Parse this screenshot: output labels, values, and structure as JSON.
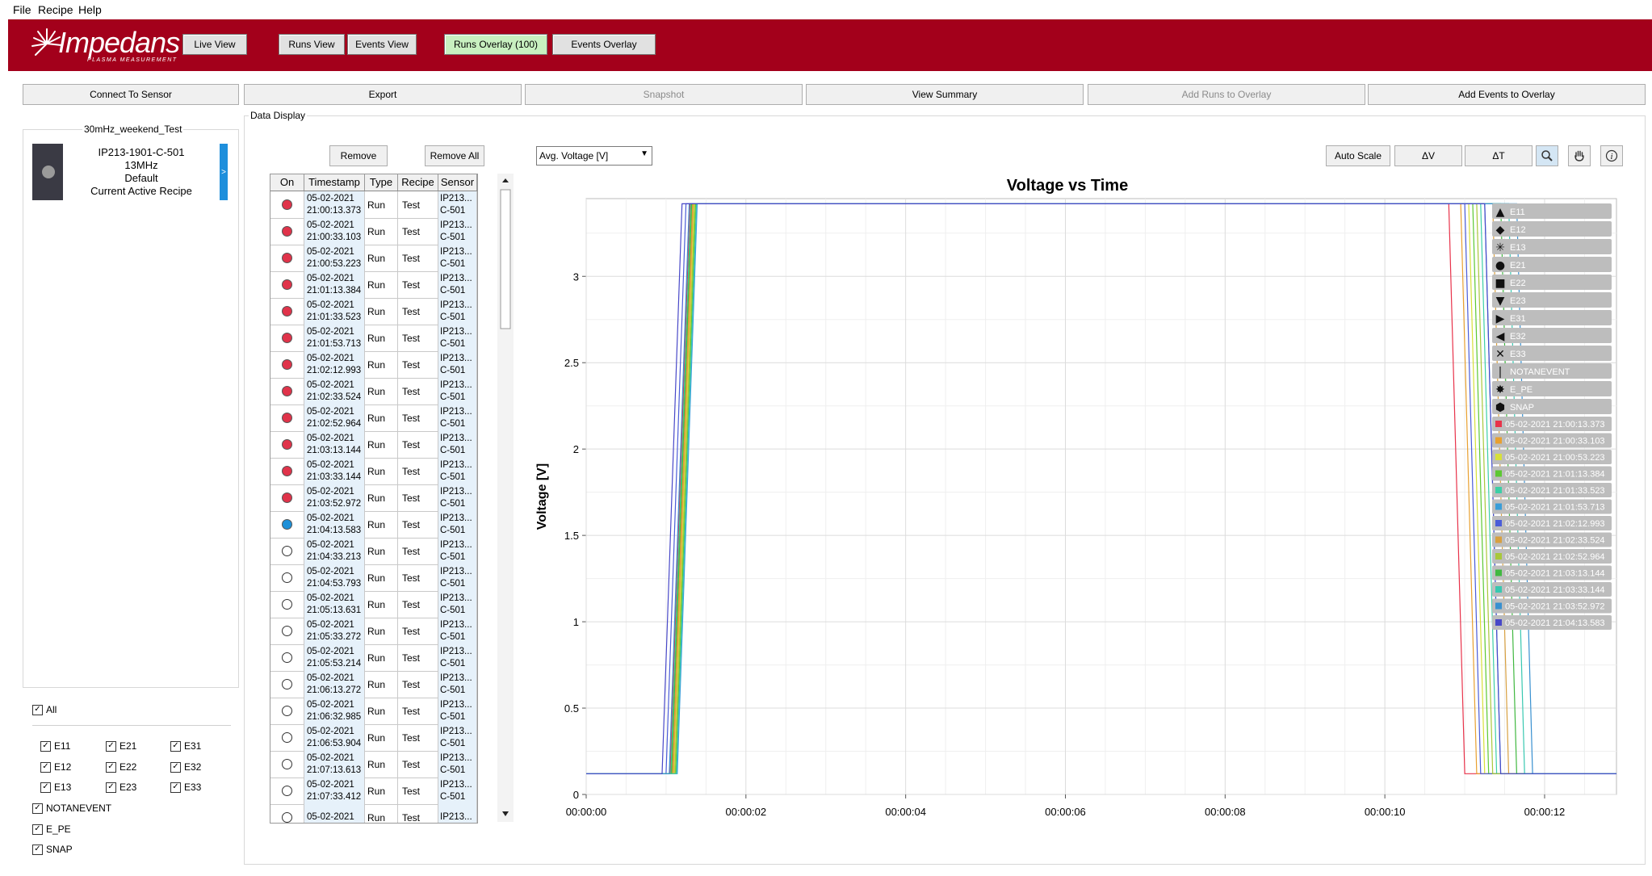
{
  "menu": [
    "File",
    "Recipe",
    "Help"
  ],
  "header": {
    "logo": "Impedans",
    "logo_sub": "PLASMA MEASUREMENT",
    "live_view": "Live View",
    "runs_view": "Runs View",
    "events_view": "Events View",
    "runs_overlay": "Runs Overlay (100)",
    "events_overlay": "Events Overlay"
  },
  "toolbar": {
    "connect": "Connect To Sensor",
    "export": "Export",
    "snapshot": "Snapshot",
    "view_summary": "View Summary",
    "add_runs": "Add Runs to Overlay",
    "add_events": "Add Events to Overlay"
  },
  "left_panel": {
    "group_title": "30mHz_weekend_Test",
    "sensor": {
      "name": "IP213-1901-C-501",
      "freq": "13MHz",
      "recipe": "Default",
      "status": "Current Active Recipe",
      "arrow": ">"
    }
  },
  "filters": {
    "check": "✓",
    "all": "All",
    "items": [
      "E11",
      "E21",
      "E31",
      "E12",
      "E22",
      "E32",
      "E13",
      "E23",
      "E33"
    ],
    "notanevent": "NOTANEVENT",
    "e_pe": "E_PE",
    "snap": "SNAP"
  },
  "data_display": {
    "title": "Data Display",
    "remove": "Remove",
    "remove_all": "Remove All",
    "headers": [
      "On",
      "Timestamp",
      "Type",
      "Recipe",
      "Sensor"
    ],
    "rows": [
      {
        "on": "red",
        "date": "05-02-2021",
        "time": "21:00:13.373",
        "type": "Run",
        "recipe": "Test",
        "s1": "IP213...",
        "s2": "C-501"
      },
      {
        "on": "red",
        "date": "05-02-2021",
        "time": "21:00:33.103",
        "type": "Run",
        "recipe": "Test",
        "s1": "IP213...",
        "s2": "C-501"
      },
      {
        "on": "red",
        "date": "05-02-2021",
        "time": "21:00:53.223",
        "type": "Run",
        "recipe": "Test",
        "s1": "IP213...",
        "s2": "C-501"
      },
      {
        "on": "red",
        "date": "05-02-2021",
        "time": "21:01:13.384",
        "type": "Run",
        "recipe": "Test",
        "s1": "IP213...",
        "s2": "C-501"
      },
      {
        "on": "red",
        "date": "05-02-2021",
        "time": "21:01:33.523",
        "type": "Run",
        "recipe": "Test",
        "s1": "IP213...",
        "s2": "C-501"
      },
      {
        "on": "red",
        "date": "05-02-2021",
        "time": "21:01:53.713",
        "type": "Run",
        "recipe": "Test",
        "s1": "IP213...",
        "s2": "C-501"
      },
      {
        "on": "red",
        "date": "05-02-2021",
        "time": "21:02:12.993",
        "type": "Run",
        "recipe": "Test",
        "s1": "IP213...",
        "s2": "C-501"
      },
      {
        "on": "red",
        "date": "05-02-2021",
        "time": "21:02:33.524",
        "type": "Run",
        "recipe": "Test",
        "s1": "IP213...",
        "s2": "C-501"
      },
      {
        "on": "red",
        "date": "05-02-2021",
        "time": "21:02:52.964",
        "type": "Run",
        "recipe": "Test",
        "s1": "IP213...",
        "s2": "C-501"
      },
      {
        "on": "red",
        "date": "05-02-2021",
        "time": "21:03:13.144",
        "type": "Run",
        "recipe": "Test",
        "s1": "IP213...",
        "s2": "C-501"
      },
      {
        "on": "red",
        "date": "05-02-2021",
        "time": "21:03:33.144",
        "type": "Run",
        "recipe": "Test",
        "s1": "IP213...",
        "s2": "C-501"
      },
      {
        "on": "red",
        "date": "05-02-2021",
        "time": "21:03:52.972",
        "type": "Run",
        "recipe": "Test",
        "s1": "IP213...",
        "s2": "C-501"
      },
      {
        "on": "blue",
        "date": "05-02-2021",
        "time": "21:04:13.583",
        "type": "Run",
        "recipe": "Test",
        "s1": "IP213...",
        "s2": "C-501"
      },
      {
        "on": "off",
        "date": "05-02-2021",
        "time": "21:04:33.213",
        "type": "Run",
        "recipe": "Test",
        "s1": "IP213...",
        "s2": "C-501"
      },
      {
        "on": "off",
        "date": "05-02-2021",
        "time": "21:04:53.793",
        "type": "Run",
        "recipe": "Test",
        "s1": "IP213...",
        "s2": "C-501"
      },
      {
        "on": "off",
        "date": "05-02-2021",
        "time": "21:05:13.631",
        "type": "Run",
        "recipe": "Test",
        "s1": "IP213...",
        "s2": "C-501"
      },
      {
        "on": "off",
        "date": "05-02-2021",
        "time": "21:05:33.272",
        "type": "Run",
        "recipe": "Test",
        "s1": "IP213...",
        "s2": "C-501"
      },
      {
        "on": "off",
        "date": "05-02-2021",
        "time": "21:05:53.214",
        "type": "Run",
        "recipe": "Test",
        "s1": "IP213...",
        "s2": "C-501"
      },
      {
        "on": "off",
        "date": "05-02-2021",
        "time": "21:06:13.272",
        "type": "Run",
        "recipe": "Test",
        "s1": "IP213...",
        "s2": "C-501"
      },
      {
        "on": "off",
        "date": "05-02-2021",
        "time": "21:06:32.985",
        "type": "Run",
        "recipe": "Test",
        "s1": "IP213...",
        "s2": "C-501"
      },
      {
        "on": "off",
        "date": "05-02-2021",
        "time": "21:06:53.904",
        "type": "Run",
        "recipe": "Test",
        "s1": "IP213...",
        "s2": "C-501"
      },
      {
        "on": "off",
        "date": "05-02-2021",
        "time": "21:07:13.613",
        "type": "Run",
        "recipe": "Test",
        "s1": "IP213...",
        "s2": "C-501"
      },
      {
        "on": "off",
        "date": "05-02-2021",
        "time": "21:07:33.412",
        "type": "Run",
        "recipe": "Test",
        "s1": "IP213...",
        "s2": "C-501"
      },
      {
        "on": "off",
        "date": "05-02-2021",
        "time": "",
        "type": "Run",
        "recipe": "Test",
        "s1": "IP213...",
        "s2": ""
      }
    ]
  },
  "chart_controls": {
    "dropdown": "Avg. Voltage [V]",
    "auto_scale": "Auto Scale",
    "delta_v": "ΔV",
    "delta_t": "ΔT",
    "zoom_icon": "search-icon",
    "pan_icon": "hand-icon",
    "info_icon": "info-icon"
  },
  "colors": {
    "brand_red": "#a3001b",
    "run_red": "#e0334a",
    "run_blue": "#1e90d8",
    "overlay_green": "#c8f0c0",
    "selected_tab": "#1e8fdc"
  },
  "chart_data": {
    "type": "line",
    "title": "Voltage vs Time",
    "ylabel": "Voltage [V]",
    "xlabel": "",
    "x_ticks": [
      "00:00:00",
      "00:00:02",
      "00:00:04",
      "00:00:06",
      "00:00:08",
      "00:00:10",
      "00:00:12"
    ],
    "y_ticks": [
      "0",
      "0.5",
      "1",
      "1.5",
      "2",
      "2.5",
      "3"
    ],
    "xlim_seconds": [
      0,
      12.9
    ],
    "ylim": [
      0,
      3.45
    ],
    "grid": true,
    "legend_position": "top-right",
    "legend_markers": [
      {
        "name": "E11",
        "marker": "▲"
      },
      {
        "name": "E12",
        "marker": "◆"
      },
      {
        "name": "E13",
        "marker": "✳"
      },
      {
        "name": "E21",
        "marker": "●"
      },
      {
        "name": "E22",
        "marker": "■"
      },
      {
        "name": "E23",
        "marker": "▼"
      },
      {
        "name": "E31",
        "marker": "▶"
      },
      {
        "name": "E32",
        "marker": "◀"
      },
      {
        "name": "E33",
        "marker": "✕"
      },
      {
        "name": "NOTANEVENT",
        "marker": "|"
      },
      {
        "name": "E_PE",
        "marker": "✸"
      },
      {
        "name": "SNAP",
        "marker": "⬢"
      }
    ],
    "series": [
      {
        "name": "05-02-2021 21:00:13.373",
        "color": "#e8324a",
        "low": 0.12,
        "high": 3.42,
        "t_up": 1.05,
        "t_down": 10.85
      },
      {
        "name": "05-02-2021 21:00:33.103",
        "color": "#e8a030",
        "low": 0.12,
        "high": 3.42,
        "t_up": 1.08,
        "t_down": 11.0
      },
      {
        "name": "05-02-2021 21:00:53.223",
        "color": "#d7e03a",
        "low": 0.12,
        "high": 3.42,
        "t_up": 1.1,
        "t_down": 11.1
      },
      {
        "name": "05-02-2021 21:01:13.384",
        "color": "#5cc832",
        "low": 0.12,
        "high": 3.42,
        "t_up": 1.12,
        "t_down": 11.15
      },
      {
        "name": "05-02-2021 21:01:33.523",
        "color": "#3ccfa6",
        "low": 0.12,
        "high": 3.42,
        "t_up": 1.06,
        "t_down": 11.25
      },
      {
        "name": "05-02-2021 21:01:53.713",
        "color": "#3a9ed8",
        "low": 0.12,
        "high": 3.42,
        "t_up": 1.14,
        "t_down": 11.3
      },
      {
        "name": "05-02-2021 21:02:12.993",
        "color": "#4a5cd8",
        "low": 0.12,
        "high": 3.42,
        "t_up": 1.0,
        "t_down": 11.05
      },
      {
        "name": "05-02-2021 21:02:33.524",
        "color": "#d8a040",
        "low": 0.12,
        "high": 3.42,
        "t_up": 1.09,
        "t_down": 11.4
      },
      {
        "name": "05-02-2021 21:02:52.964",
        "color": "#a8c83a",
        "low": 0.12,
        "high": 3.42,
        "t_up": 1.11,
        "t_down": 11.2
      },
      {
        "name": "05-02-2021 21:03:13.144",
        "color": "#40b840",
        "low": 0.12,
        "high": 3.42,
        "t_up": 1.07,
        "t_down": 11.5
      },
      {
        "name": "05-02-2021 21:03:33.144",
        "color": "#38c8b0",
        "low": 0.12,
        "high": 3.42,
        "t_up": 1.13,
        "t_down": 11.6
      },
      {
        "name": "05-02-2021 21:03:52.972",
        "color": "#3890d0",
        "low": 0.12,
        "high": 3.42,
        "t_up": 1.04,
        "t_down": 11.7
      },
      {
        "name": "05-02-2021 21:04:13.583",
        "color": "#4848c8",
        "low": 0.12,
        "high": 3.42,
        "t_up": 0.95,
        "t_down": 11.3
      }
    ]
  }
}
